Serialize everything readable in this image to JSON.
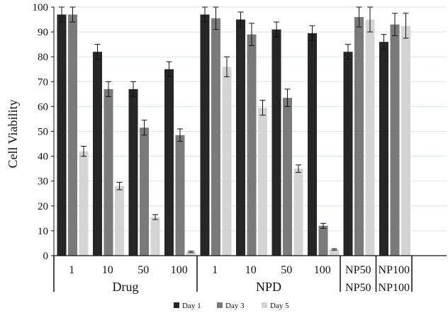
{
  "chart_data": {
    "type": "bar",
    "ylabel": "Cell Viability",
    "ylim": [
      0,
      100
    ],
    "yticks": [
      0,
      10,
      20,
      30,
      40,
      50,
      60,
      70,
      80,
      90,
      100
    ],
    "grid": "horizontal",
    "legend_position": "bottom-center",
    "categories": [
      "1",
      "10",
      "50",
      "100",
      "1",
      "10",
      "50",
      "100",
      "NP50",
      "NP100"
    ],
    "groups": [
      {
        "label": "Drug",
        "start": 0,
        "end": 3
      },
      {
        "label": "NPD",
        "start": 4,
        "end": 7
      },
      {
        "label": "NP50",
        "start": 8,
        "end": 8
      },
      {
        "label": "NP100",
        "start": 9,
        "end": 9
      }
    ],
    "series": [
      {
        "name": "Day 1",
        "color": "#262626",
        "values": [
          97,
          82,
          67,
          75,
          97,
          95,
          91,
          89.5,
          82,
          86
        ],
        "errors": [
          3,
          3,
          3,
          3,
          3,
          3,
          3,
          3,
          3,
          3
        ]
      },
      {
        "name": "Day 3",
        "color": "#7a7a7a",
        "values": [
          97,
          67,
          51.5,
          48.5,
          95.5,
          89,
          63.5,
          12,
          96,
          93
        ],
        "errors": [
          3,
          3,
          3,
          2.5,
          4.5,
          4.5,
          3.5,
          1,
          4,
          4.5
        ]
      },
      {
        "name": "Day 5",
        "color": "#d4d4d4",
        "values": [
          42,
          28,
          15.5,
          1.5,
          76,
          59.5,
          35,
          2.5,
          95,
          92.5
        ],
        "errors": [
          2,
          1.5,
          1,
          0.3,
          4,
          3,
          1.5,
          0.3,
          5,
          5
        ]
      }
    ]
  }
}
